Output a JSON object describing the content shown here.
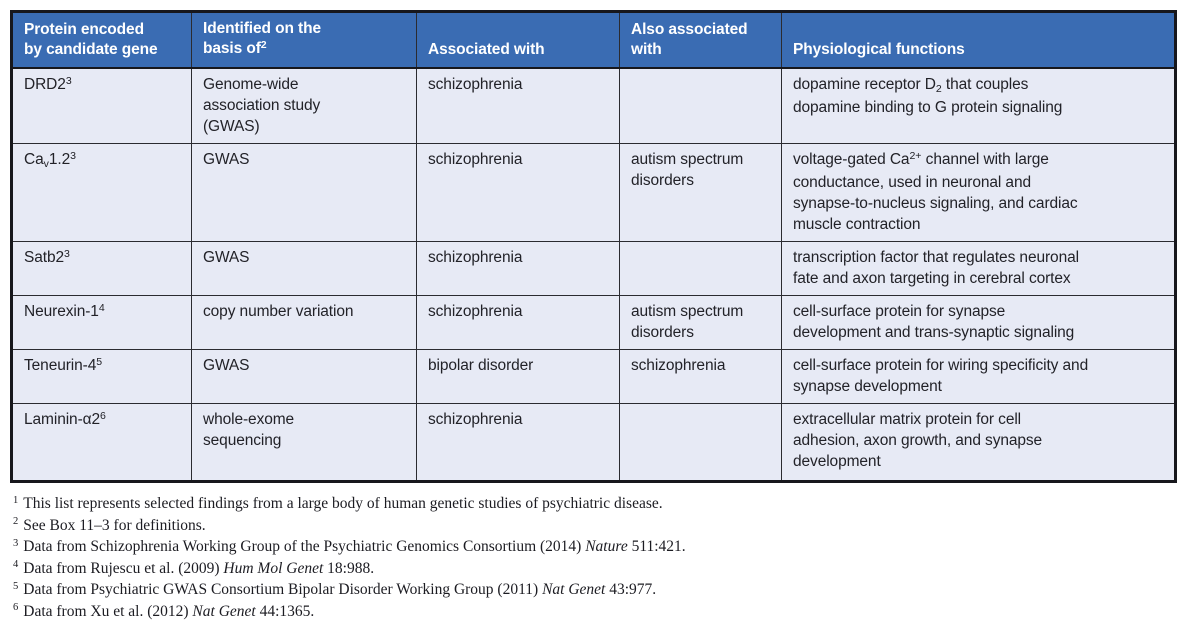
{
  "colors": {
    "header_bg": "#3a6cb3",
    "header_text": "#ffffff",
    "row_bg": "#e7eaf5",
    "border_dark": "#17171c",
    "body_text": "#222228"
  },
  "table": {
    "name": "candidate-gene-table",
    "columns": [
      {
        "id": "protein",
        "segments": [
          {
            "t": "Protein encoded"
          },
          {
            "m": "br"
          },
          {
            "t": "by candidate gene"
          }
        ]
      },
      {
        "id": "basis",
        "segments": [
          {
            "t": "Identified on the"
          },
          {
            "m": "br"
          },
          {
            "t": "basis of"
          },
          {
            "t": "2",
            "m": "sup"
          }
        ]
      },
      {
        "id": "associated",
        "segments": [
          {
            "t": "Associated with"
          }
        ]
      },
      {
        "id": "also-associated",
        "segments": [
          {
            "t": "Also associated"
          },
          {
            "m": "br"
          },
          {
            "t": "with"
          }
        ]
      },
      {
        "id": "functions",
        "segments": [
          {
            "t": "Physiological functions"
          }
        ]
      }
    ],
    "rows": [
      {
        "id": "drd2",
        "cells": [
          [
            {
              "t": "DRD2"
            },
            {
              "t": "3",
              "m": "sup"
            }
          ],
          [
            {
              "t": "Genome-wide"
            },
            {
              "m": "br"
            },
            {
              "t": "association study"
            },
            {
              "m": "br"
            },
            {
              "t": "(GWAS)"
            }
          ],
          [
            {
              "t": "schizophrenia"
            }
          ],
          [],
          [
            {
              "t": "dopamine receptor D"
            },
            {
              "t": "2",
              "m": "sub"
            },
            {
              "t": " that couples"
            },
            {
              "m": "br"
            },
            {
              "t": "dopamine binding to G protein signaling"
            }
          ]
        ]
      },
      {
        "id": "cav12",
        "cells": [
          [
            {
              "t": "Ca"
            },
            {
              "t": "v",
              "m": "sub"
            },
            {
              "t": "1.2"
            },
            {
              "t": "3",
              "m": "sup"
            }
          ],
          [
            {
              "t": "GWAS"
            }
          ],
          [
            {
              "t": "schizophrenia"
            }
          ],
          [
            {
              "t": "autism spectrum"
            },
            {
              "m": "br"
            },
            {
              "t": "disorders"
            }
          ],
          [
            {
              "t": "voltage-gated Ca"
            },
            {
              "t": "2+",
              "m": "sup"
            },
            {
              "t": " channel with large"
            },
            {
              "m": "br"
            },
            {
              "t": "conductance, used in neuronal and"
            },
            {
              "m": "br"
            },
            {
              "t": "synapse-to-nucleus signaling, and cardiac"
            },
            {
              "m": "br"
            },
            {
              "t": "muscle contraction"
            }
          ]
        ]
      },
      {
        "id": "satb2",
        "cells": [
          [
            {
              "t": "Satb2"
            },
            {
              "t": "3",
              "m": "sup"
            }
          ],
          [
            {
              "t": "GWAS"
            }
          ],
          [
            {
              "t": "schizophrenia"
            }
          ],
          [],
          [
            {
              "t": "transcription factor that regulates neuronal"
            },
            {
              "m": "br"
            },
            {
              "t": "fate and axon targeting in cerebral cortex"
            }
          ]
        ]
      },
      {
        "id": "neurexin1",
        "cells": [
          [
            {
              "t": "Neurexin-1"
            },
            {
              "t": "4",
              "m": "sup"
            }
          ],
          [
            {
              "t": "copy number variation"
            }
          ],
          [
            {
              "t": "schizophrenia"
            }
          ],
          [
            {
              "t": "autism spectrum"
            },
            {
              "m": "br"
            },
            {
              "t": "disorders"
            }
          ],
          [
            {
              "t": "cell-surface protein for synapse"
            },
            {
              "m": "br"
            },
            {
              "t": "development and trans-synaptic signaling"
            }
          ]
        ]
      },
      {
        "id": "teneurin4",
        "cells": [
          [
            {
              "t": "Teneurin-4"
            },
            {
              "t": "5",
              "m": "sup"
            }
          ],
          [
            {
              "t": "GWAS"
            }
          ],
          [
            {
              "t": "bipolar disorder"
            }
          ],
          [
            {
              "t": "schizophrenia"
            }
          ],
          [
            {
              "t": "cell-surface protein for wiring specificity and"
            },
            {
              "m": "br"
            },
            {
              "t": "synapse development"
            }
          ]
        ]
      },
      {
        "id": "laminin-a2",
        "cells": [
          [
            {
              "t": "Laminin-α2"
            },
            {
              "t": "6",
              "m": "sup"
            }
          ],
          [
            {
              "t": "whole-exome"
            },
            {
              "m": "br"
            },
            {
              "t": "sequencing"
            }
          ],
          [
            {
              "t": "schizophrenia"
            }
          ],
          [],
          [
            {
              "t": "extracellular matrix protein for cell"
            },
            {
              "m": "br"
            },
            {
              "t": "adhesion, axon growth, and synapse"
            },
            {
              "m": "br"
            },
            {
              "t": "development"
            }
          ]
        ]
      }
    ]
  },
  "footnotes": [
    {
      "marker": "1",
      "segments": [
        {
          "t": "This list represents selected findings from a large body of human genetic studies of psychiatric disease."
        }
      ]
    },
    {
      "marker": "2",
      "segments": [
        {
          "t": "See Box 11–3 for definitions."
        }
      ]
    },
    {
      "marker": "3",
      "segments": [
        {
          "t": "Data from Schizophrenia Working Group of the Psychiatric Genomics Consortium (2014) "
        },
        {
          "t": "Nature",
          "m": "i"
        },
        {
          "t": " 511:421."
        }
      ]
    },
    {
      "marker": "4",
      "segments": [
        {
          "t": "Data from Rujescu et al. (2009) "
        },
        {
          "t": "Hum Mol Genet",
          "m": "i"
        },
        {
          "t": " 18:988."
        }
      ]
    },
    {
      "marker": "5",
      "segments": [
        {
          "t": "Data from Psychiatric GWAS Consortium Bipolar Disorder Working Group (2011) "
        },
        {
          "t": "Nat Genet",
          "m": "i"
        },
        {
          "t": " 43:977."
        }
      ]
    },
    {
      "marker": "6",
      "segments": [
        {
          "t": "Data from Xu et al. (2012) "
        },
        {
          "t": "Nat Genet",
          "m": "i"
        },
        {
          "t": " 44:1365."
        }
      ]
    }
  ]
}
